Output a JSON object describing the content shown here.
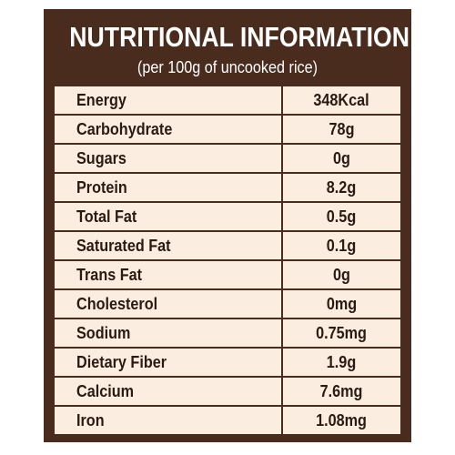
{
  "label": {
    "title": "NUTRITIONAL INFORMATION",
    "subtitle": "(per 100g of uncooked rice)",
    "colors": {
      "frame": "#4a2c1f",
      "cell_background": "#fbeee0",
      "header_text": "#ffffff",
      "cell_text": "#2a1a12"
    }
  },
  "rows": [
    {
      "nutrient": "Energy",
      "amount": "348Kcal"
    },
    {
      "nutrient": "Carbohydrate",
      "amount": "78g"
    },
    {
      "nutrient": "Sugars",
      "amount": "0g"
    },
    {
      "nutrient": "Protein",
      "amount": "8.2g"
    },
    {
      "nutrient": "Total Fat",
      "amount": "0.5g"
    },
    {
      "nutrient": "Saturated Fat",
      "amount": "0.1g"
    },
    {
      "nutrient": "Trans Fat",
      "amount": "0g"
    },
    {
      "nutrient": "Cholesterol",
      "amount": "0mg"
    },
    {
      "nutrient": "Sodium",
      "amount": "0.75mg"
    },
    {
      "nutrient": "Dietary Fiber",
      "amount": "1.9g"
    },
    {
      "nutrient": "Calcium",
      "amount": "7.6mg"
    },
    {
      "nutrient": "Iron",
      "amount": "1.08mg"
    }
  ]
}
